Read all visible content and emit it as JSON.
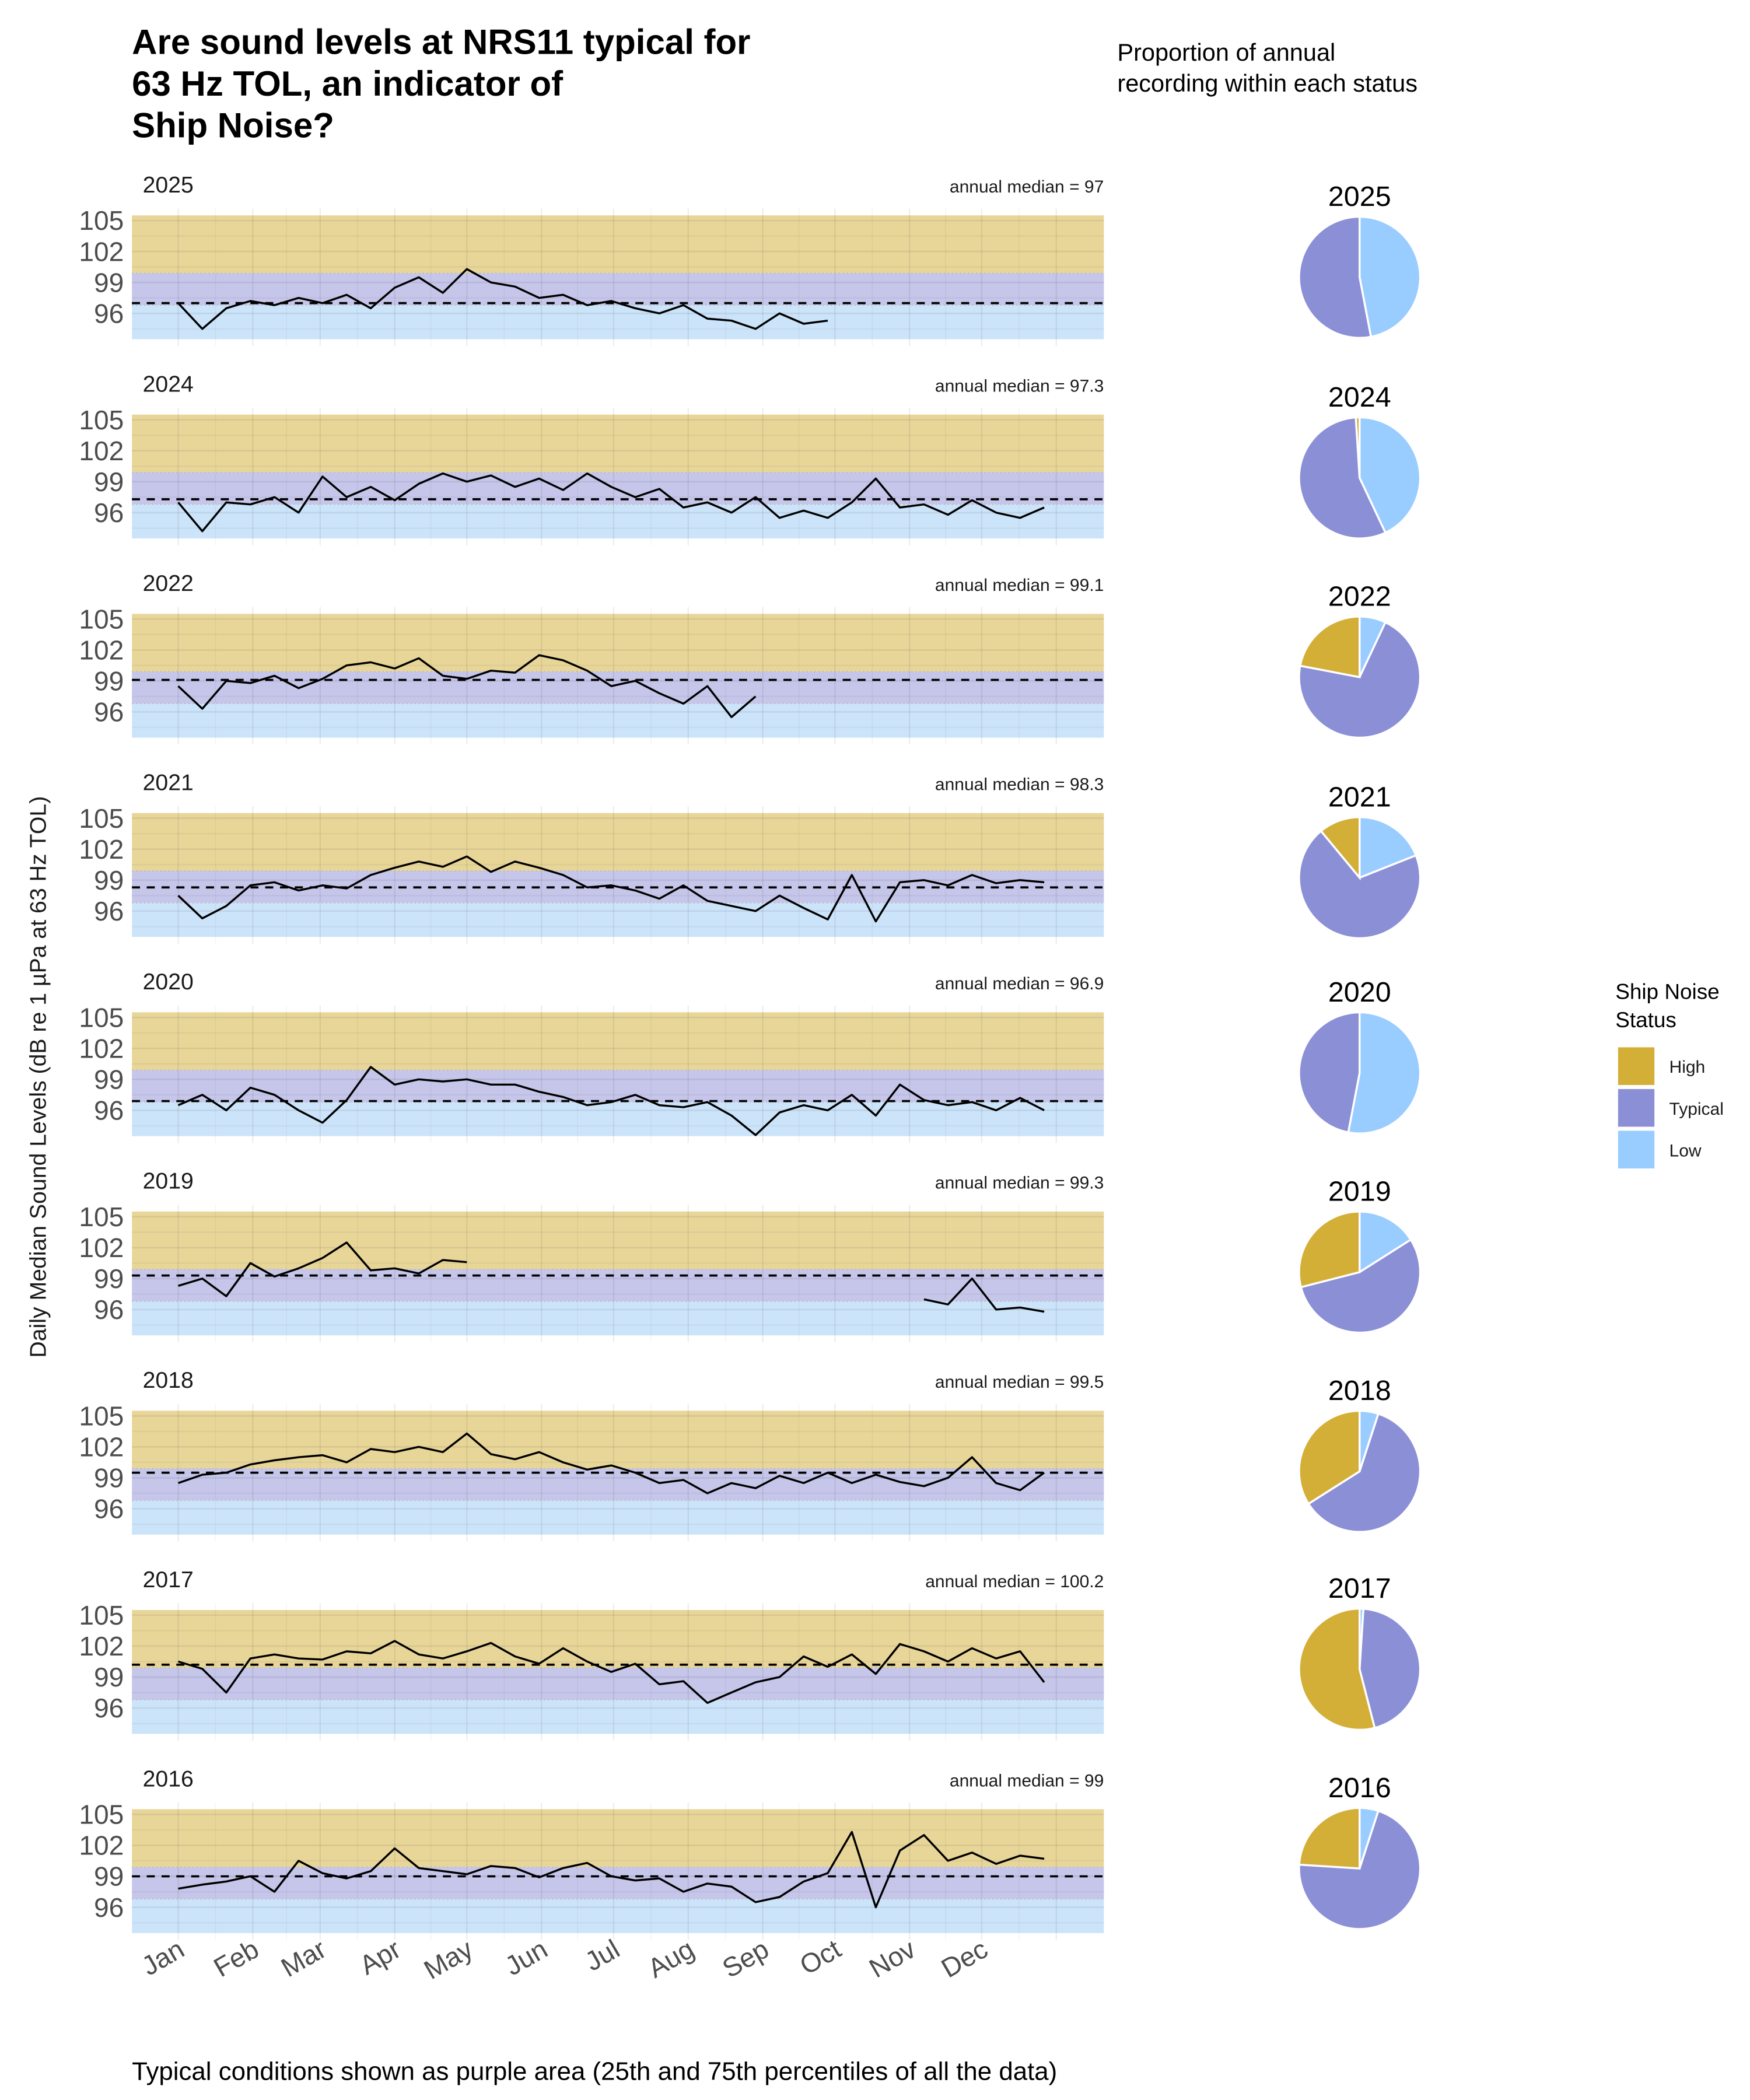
{
  "title_lines": [
    "Are sound levels at NRS11 typical for",
    "63 Hz TOL, an indicator of",
    "Ship Noise?"
  ],
  "pie_heading_lines": [
    "Proportion of annual",
    "recording within each status"
  ],
  "y_axis_label": "Daily Median Sound Levels (dB re 1 µPa at 63 Hz TOL)",
  "caption": "Typical conditions shown as purple area (25th and 75th percentiles of all the data)",
  "legend": {
    "title_lines": [
      "Ship Noise",
      "Status"
    ],
    "items": [
      {
        "label": "High",
        "color": "#D4AF37"
      },
      {
        "label": "Typical",
        "color": "#8B8FD6"
      },
      {
        "label": "Low",
        "color": "#99CCFF"
      }
    ]
  },
  "colors": {
    "band_high": "#E8D699",
    "band_typical": "#C5C6EA",
    "band_low": "#CCE4FA",
    "line": "#000000"
  },
  "chart_data": [
    {
      "type": "line",
      "panel": "time-series",
      "ylim": [
        93.5,
        105.5
      ],
      "yticks": [
        96,
        99,
        102,
        105
      ],
      "typical_range": [
        96.8,
        99.9
      ],
      "x_unit": "day of year",
      "x_sample_days": [
        1,
        11,
        21,
        31,
        41,
        51,
        61,
        71,
        81,
        91,
        101,
        111,
        121,
        131,
        141,
        151,
        161,
        171,
        181,
        191,
        201,
        211,
        221,
        231,
        241,
        251,
        261,
        271,
        281,
        291,
        301,
        311,
        321,
        331,
        341,
        351,
        361
      ],
      "month_labels": [
        "Jan",
        "Feb",
        "Mar",
        "Apr",
        "May",
        "Jun",
        "Jul",
        "Aug",
        "Sep",
        "Oct",
        "Nov",
        "Dec"
      ],
      "grid": true,
      "years": [
        {
          "year": "2025",
          "median_label": "annual median = 97",
          "median": 97,
          "values": [
            97,
            94.5,
            96.5,
            97.2,
            96.8,
            97.5,
            97,
            97.8,
            96.5,
            98.5,
            99.5,
            98,
            100.3,
            99,
            98.6,
            97.5,
            97.8,
            96.8,
            97.2,
            96.5,
            96,
            96.8,
            95.5,
            95.3,
            94.5,
            96,
            95,
            95.3,
            null,
            null,
            null,
            null,
            null,
            null,
            null,
            null,
            null
          ]
        },
        {
          "year": "2024",
          "median_label": "annual median = 97.3",
          "median": 97.3,
          "values": [
            97,
            94.2,
            97,
            96.8,
            97.5,
            96,
            99.5,
            97.5,
            98.5,
            97.2,
            98.8,
            99.8,
            99,
            99.6,
            98.5,
            99.3,
            98.2,
            99.8,
            98.5,
            97.5,
            98.3,
            96.5,
            97,
            96,
            97.5,
            95.5,
            96.2,
            95.5,
            97,
            99.3,
            96.5,
            96.8,
            95.8,
            97.2,
            96,
            95.5,
            96.5
          ]
        },
        {
          "year": "2022",
          "median_label": "annual median = 99.1",
          "median": 99.1,
          "values": [
            98.5,
            96.3,
            99,
            98.8,
            99.5,
            98.3,
            99.2,
            100.5,
            100.8,
            100.2,
            101.2,
            99.5,
            99.2,
            100,
            99.8,
            101.5,
            101,
            100,
            98.5,
            99,
            97.8,
            96.8,
            98.5,
            95.5,
            97.5,
            null,
            null,
            null,
            null,
            null,
            null,
            null,
            null,
            null,
            null,
            null,
            null
          ]
        },
        {
          "year": "2021",
          "median_label": "annual median = 98.3",
          "median": 98.3,
          "values": [
            97.5,
            95.3,
            96.5,
            98.5,
            98.8,
            98,
            98.5,
            98.2,
            99.5,
            100.2,
            100.8,
            100.3,
            101.3,
            99.8,
            100.8,
            100.2,
            99.5,
            98.3,
            98.5,
            98,
            97.2,
            98.5,
            97,
            96.5,
            96,
            97.5,
            96.3,
            95.2,
            99.5,
            95,
            98.8,
            99,
            98.5,
            99.5,
            98.7,
            99,
            98.8
          ]
        },
        {
          "year": "2020",
          "median_label": "annual median = 96.9",
          "median": 96.9,
          "values": [
            96.5,
            97.5,
            96,
            98.2,
            97.5,
            96,
            94.8,
            97,
            100.2,
            98.5,
            99,
            98.8,
            99,
            98.5,
            98.5,
            97.8,
            97.3,
            96.5,
            96.8,
            97.5,
            96.5,
            96.3,
            96.8,
            95.5,
            93.6,
            95.8,
            96.5,
            96,
            97.5,
            95.5,
            98.5,
            97,
            96.5,
            96.8,
            96,
            97.2,
            96
          ]
        },
        {
          "year": "2019",
          "median_label": "annual median = 99.3",
          "median": 99.3,
          "values": [
            98.3,
            99,
            97.3,
            100.5,
            99.2,
            100,
            101,
            102.5,
            99.8,
            100,
            99.5,
            100.8,
            100.6,
            null,
            null,
            null,
            null,
            null,
            null,
            null,
            null,
            null,
            null,
            null,
            null,
            null,
            null,
            null,
            null,
            null,
            null,
            97,
            96.5,
            99,
            96,
            96.2,
            95.8
          ]
        },
        {
          "year": "2018",
          "median_label": "annual median = 99.5",
          "median": 99.5,
          "values": [
            98.5,
            99.3,
            99.5,
            100.3,
            100.7,
            101,
            101.2,
            100.5,
            101.8,
            101.5,
            102,
            101.5,
            103.3,
            101.3,
            100.8,
            101.5,
            100.5,
            99.8,
            100.2,
            99.5,
            98.5,
            98.8,
            97.5,
            98.5,
            98,
            99.2,
            98.5,
            99.5,
            98.5,
            99.3,
            98.6,
            98.2,
            99,
            101,
            98.5,
            97.8,
            99.5
          ]
        },
        {
          "year": "2017",
          "median_label": "annual median = 100.2",
          "median": 100.2,
          "values": [
            100.5,
            99.8,
            97.5,
            100.8,
            101.2,
            100.8,
            100.7,
            101.5,
            101.3,
            102.5,
            101.2,
            100.8,
            101.5,
            102.3,
            101,
            100.3,
            101.8,
            100.5,
            99.5,
            100.3,
            98.3,
            98.6,
            96.5,
            97.5,
            98.5,
            99,
            101,
            100,
            101.2,
            99.3,
            102.2,
            101.5,
            100.5,
            101.8,
            100.8,
            101.5,
            98.5
          ]
        },
        {
          "year": "2016",
          "median_label": "annual median = 99",
          "median": 99,
          "values": [
            97.8,
            98.2,
            98.5,
            99,
            97.5,
            100.5,
            99.3,
            98.8,
            99.5,
            101.7,
            99.8,
            99.5,
            99.2,
            100,
            99.8,
            98.9,
            99.8,
            100.3,
            99,
            98.6,
            98.8,
            97.5,
            98.3,
            98,
            96.5,
            97,
            98.5,
            99.3,
            103.3,
            96,
            101.5,
            103,
            100.5,
            101.3,
            100.2,
            101,
            100.7
          ]
        }
      ]
    },
    {
      "type": "pie",
      "slice_order": [
        "Low",
        "Typical",
        "High"
      ],
      "years": [
        {
          "year": "2025",
          "Low": 0.47,
          "Typical": 0.53,
          "High": 0.0
        },
        {
          "year": "2024",
          "Low": 0.43,
          "Typical": 0.56,
          "High": 0.01
        },
        {
          "year": "2022",
          "Low": 0.07,
          "Typical": 0.71,
          "High": 0.22
        },
        {
          "year": "2021",
          "Low": 0.19,
          "Typical": 0.7,
          "High": 0.11
        },
        {
          "year": "2020",
          "Low": 0.53,
          "Typical": 0.47,
          "High": 0.0
        },
        {
          "year": "2019",
          "Low": 0.16,
          "Typical": 0.55,
          "High": 0.29
        },
        {
          "year": "2018",
          "Low": 0.05,
          "Typical": 0.61,
          "High": 0.34
        },
        {
          "year": "2017",
          "Low": 0.01,
          "Typical": 0.45,
          "High": 0.54
        },
        {
          "year": "2016",
          "Low": 0.05,
          "Typical": 0.71,
          "High": 0.24
        }
      ]
    }
  ]
}
